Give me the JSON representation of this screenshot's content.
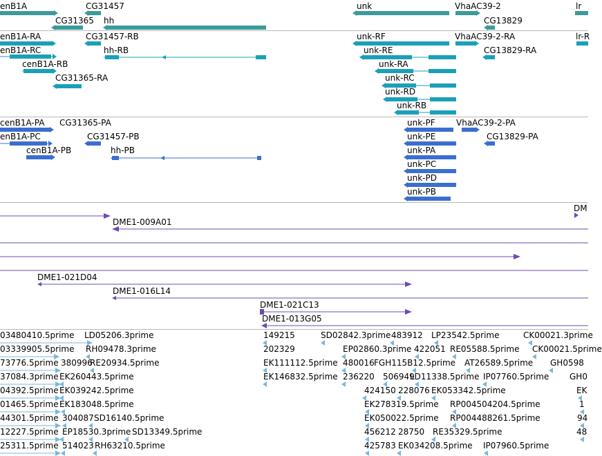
{
  "colors": {
    "gene": "#3d9a9a",
    "mrna": "#1aa0b8",
    "protein": "#3a6fd0",
    "bac": "#6e4bb0",
    "est": "#7ab8de",
    "separator": "#b8b8b8"
  },
  "tracks": {
    "genes": {
      "labels": [
        "enB1A",
        "CG31457",
        "CG31365",
        "hh",
        "unk",
        "VhaAC39-2",
        "CG13829",
        "lr"
      ]
    },
    "transcripts": {
      "labels": [
        "enB1A-RA",
        "CG31457-RB",
        "VhaAC39-2-RA",
        "unk-RF",
        "lr-R",
        "enB1A-RC",
        "hh-RB",
        "unk-RE",
        "CG13829-RA",
        "cenB1A-RB",
        "unk-RA",
        "CG31365-RA",
        "unk-RC",
        "unk-RD",
        "unk-RB"
      ]
    },
    "proteins": {
      "labels": [
        "cenB1A-PA",
        "CG31365-PA",
        "unk-PF",
        "VhaAC39-2-PA",
        "enB1A-PC",
        "CG31457-PB",
        "unk-PE",
        "CG13829-PA",
        "cenB1A-PB",
        "hh-PB",
        "unk-PA",
        "unk-PC",
        "unk-PD",
        "unk-PB"
      ]
    },
    "bac_clones": {
      "labels": [
        "DME1-009A01",
        "DM",
        "DME1-021D04",
        "DME1-016L14",
        "DME1-021C13",
        "DME1-013G05"
      ]
    },
    "ests": {
      "labels": [
        "03480410.5prime",
        "LD05206.3prime",
        "149215",
        "SD02842.3prime",
        "483912",
        "LP23542.5prime",
        "CK00021.3prime",
        "03339905.5prime",
        "RH09478.3prime",
        "202329",
        "EP02860.3prime",
        "422051",
        "RE05588.5prime",
        "CK00021.5prime",
        "73776.5prime",
        "380996",
        "RE20934.5prime",
        "EK111112.5prime",
        "480016",
        "FGH115B12.5prime",
        "AT26589.5prime",
        "GH0598",
        "37084.3prime",
        "EK260443.5prime",
        "EK146832.5prime",
        "236220",
        "506949",
        "LD11338.5prime",
        "IP07760.5prime",
        "GH0",
        "04392.5prime",
        "EK039242.5prime",
        "424150",
        "228076",
        "EK053342.5prime",
        "EK",
        "01465.5prime",
        "EK183048.5prime",
        "EK278319.5prime",
        "RP004504204.5prime",
        "1",
        "44301.5prime",
        "304087",
        "SD16140.5prime",
        "EK050022.5prime",
        "RP004488261.5prime",
        "94",
        "12227.5prime",
        "EP18530.3prime",
        "SD13349.5prime",
        "456212",
        "28750",
        "RE35329.5prime",
        "48",
        "25311.5prime",
        "514023",
        "RH63210.5prime",
        "425783",
        "EK034208.5prime",
        "IP07960.5prime"
      ]
    }
  }
}
